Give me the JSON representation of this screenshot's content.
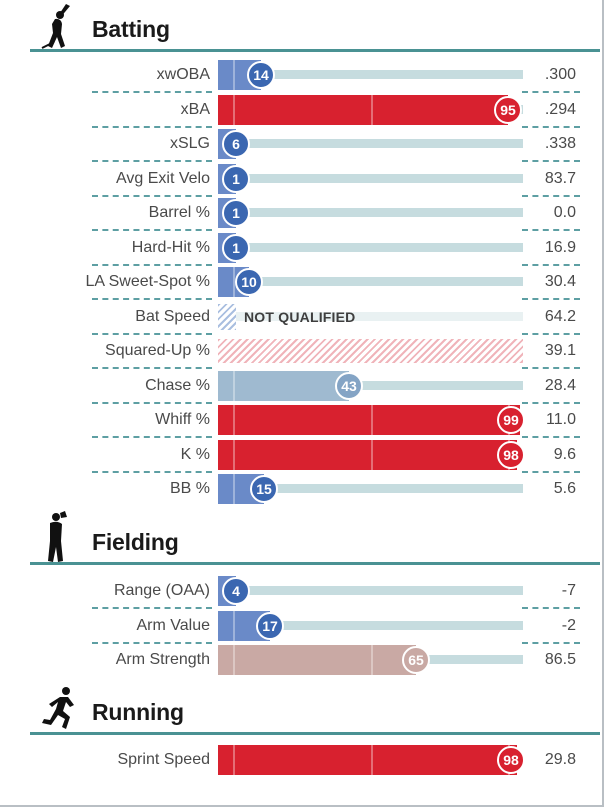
{
  "colors": {
    "poor": "#3b67b1",
    "poor_light": "#6a8ac8",
    "neutral": "#b4cdd3",
    "neutral_warm": "#c9a9a4",
    "good": "#d8212f",
    "track": "#c6dcdf",
    "rule": "#4a9293"
  },
  "sections": [
    {
      "title": "Batting",
      "icon": "batter-silhouette-icon",
      "rows": [
        {
          "label": "xwOBA",
          "value": ".300",
          "percentile": 14
        },
        {
          "label": "xBA",
          "value": ".294",
          "percentile": 95
        },
        {
          "label": "xSLG",
          "value": ".338",
          "percentile": 6
        },
        {
          "label": "Avg Exit Velo",
          "value": "83.7",
          "percentile": 1
        },
        {
          "label": "Barrel %",
          "value": "0.0",
          "percentile": 1
        },
        {
          "label": "Hard-Hit %",
          "value": "16.9",
          "percentile": 1
        },
        {
          "label": "LA Sweet-Spot %",
          "value": "30.4",
          "percentile": 10
        },
        {
          "label": "Bat Speed",
          "value": "64.2",
          "status": "NOT QUALIFIED"
        },
        {
          "label": "Squared-Up %",
          "value": "39.1",
          "status": "unqualified-red"
        },
        {
          "label": "Chase %",
          "value": "28.4",
          "percentile": 43
        },
        {
          "label": "Whiff %",
          "value": "11.0",
          "percentile": 99
        },
        {
          "label": "K %",
          "value": "9.6",
          "percentile": 98
        },
        {
          "label": "BB %",
          "value": "5.6",
          "percentile": 15
        }
      ]
    },
    {
      "title": "Fielding",
      "icon": "fielder-silhouette-icon",
      "rows": [
        {
          "label": "Range (OAA)",
          "value": "-7",
          "percentile": 4
        },
        {
          "label": "Arm Value",
          "value": "-2",
          "percentile": 17
        },
        {
          "label": "Arm Strength",
          "value": "86.5",
          "percentile": 65
        }
      ]
    },
    {
      "title": "Running",
      "icon": "runner-silhouette-icon",
      "rows": [
        {
          "label": "Sprint Speed",
          "value": "29.8",
          "percentile": 98
        }
      ]
    }
  ]
}
